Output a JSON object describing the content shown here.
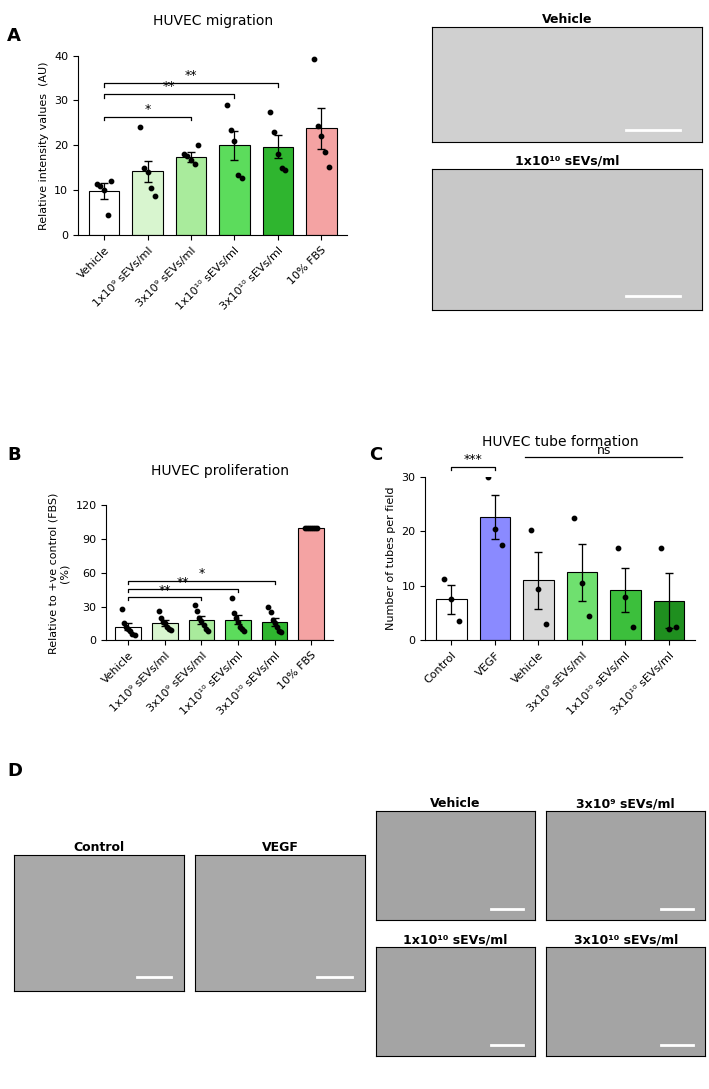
{
  "chart_data": [
    {
      "type": "bar",
      "panel": "A",
      "title": "HUVEC migration",
      "y_label": "Relative intensity values  (AU)",
      "categories": [
        "Vehicle",
        "1x10⁹ sEVs/ml",
        "3x10⁹ sEVs/ml",
        "1x10¹⁰ sEVs/ml",
        "3x10¹⁰ sEVs/ml",
        "10% FBS"
      ],
      "values": [
        9.8,
        14.2,
        17.4,
        20.0,
        19.7,
        23.8
      ],
      "errors": [
        1.8,
        2.3,
        1.2,
        3.3,
        2.5,
        4.5
      ],
      "points": [
        [
          11.5,
          11.0,
          10.0,
          4.5,
          12.0
        ],
        [
          24.0,
          15.0,
          14.0,
          10.5,
          8.8
        ],
        [
          18.0,
          17.6,
          16.8,
          15.8,
          20.0
        ],
        [
          29.0,
          23.5,
          21.0,
          13.5,
          12.7
        ],
        [
          27.5,
          23.0,
          18.0,
          15.0,
          14.5
        ],
        [
          39.3,
          24.3,
          22.0,
          18.5,
          15.2
        ]
      ],
      "colors": [
        "#ffffff",
        "#d8f5cf",
        "#a9eb9c",
        "#5cdc5c",
        "#2fb52f",
        "#f4a3a3"
      ],
      "significance": [
        {
          "from": "Vehicle",
          "to": "3x10⁹ sEVs/ml",
          "label": "*"
        },
        {
          "from": "Vehicle",
          "to": "1x10¹⁰ sEVs/ml",
          "label": "**"
        },
        {
          "from": "Vehicle",
          "to": "3x10¹⁰ sEVs/ml",
          "label": "**"
        }
      ],
      "ylim": [
        0,
        40
      ],
      "yticks": [
        0,
        10,
        20,
        30,
        40
      ]
    },
    {
      "type": "bar",
      "panel": "B",
      "title": "HUVEC proliferation",
      "y_label": "Relative to +ve control (FBS)\n(%)",
      "categories": [
        "Vehicle",
        "1x10⁹ sEVs/ml",
        "3x10⁹ sEVs/ml",
        "1x10¹⁰ sEVs/ml",
        "3x10¹⁰ sEVs/ml",
        "10% FBS"
      ],
      "values": [
        12.0,
        15.5,
        18.0,
        18.5,
        16.5,
        100.0
      ],
      "errors": [
        3.0,
        3.0,
        3.5,
        4.0,
        3.5,
        0.0
      ],
      "points": [
        [
          28.0,
          15.0,
          12.0,
          10.0,
          8.0,
          6.0,
          5.0
        ],
        [
          26.0,
          20.0,
          16.0,
          15.0,
          12.0,
          10.0,
          9.0
        ],
        [
          31.0,
          26.0,
          20.0,
          17.0,
          14.0,
          10.0,
          8.0
        ],
        [
          38.0,
          24.0,
          20.0,
          16.0,
          12.0,
          10.0,
          8.0
        ],
        [
          30.0,
          25.0,
          18.0,
          15.0,
          12.0,
          8.0,
          7.0
        ],
        [
          100.0,
          100.0,
          100.0,
          100.0,
          100.0,
          100.0,
          100.0
        ]
      ],
      "colors": [
        "#ffffff",
        "#d8f5cf",
        "#a9eb9c",
        "#5cdc5c",
        "#2fb52f",
        "#f4a3a3"
      ],
      "significance": [
        {
          "from": "Vehicle",
          "to": "3x10⁹ sEVs/ml",
          "label": "**"
        },
        {
          "from": "Vehicle",
          "to": "1x10¹⁰ sEVs/ml",
          "label": "**"
        },
        {
          "from": "Vehicle",
          "to": "3x10¹⁰ sEVs/ml",
          "label": "*"
        }
      ],
      "ylim": [
        0,
        120
      ],
      "yticks": [
        0,
        30,
        60,
        90,
        120
      ]
    },
    {
      "type": "bar",
      "panel": "C",
      "title": "HUVEC tube formation",
      "y_label": "Number of tubes per field",
      "categories": [
        "Control",
        "VEGF",
        "Vehicle",
        "3x10⁹ sEVs/ml",
        "1x10¹⁰ sEVs/ml",
        "3x10¹⁰ sEVs/ml"
      ],
      "values": [
        7.5,
        22.6,
        11.0,
        12.5,
        9.2,
        7.3
      ],
      "errors": [
        2.7,
        4.0,
        5.2,
        5.2,
        4.0,
        5.0
      ],
      "points": [
        [
          11.3,
          7.5,
          3.5
        ],
        [
          30.0,
          20.5,
          17.5
        ],
        [
          20.3,
          9.5,
          3.0
        ],
        [
          22.5,
          10.5,
          4.5
        ],
        [
          17.0,
          8.0,
          2.5
        ],
        [
          17.0,
          2.0,
          2.5
        ]
      ],
      "colors": [
        "#ffffff",
        "#8a8aff",
        "#d9d9d9",
        "#6fe06f",
        "#3cbf3c",
        "#1f8f1f"
      ],
      "significance": [
        {
          "from": "Control",
          "to": "VEGF",
          "label": "***"
        },
        {
          "from": "Vehicle",
          "to": "3x10¹⁰ sEVs/ml",
          "label": "ns"
        }
      ],
      "ylim": [
        0,
        30
      ],
      "yticks": [
        0,
        10,
        20,
        30
      ]
    }
  ],
  "images": [
    {
      "panel": "A",
      "label": "Vehicle"
    },
    {
      "panel": "A",
      "label": "1x10¹⁰ sEVs/ml"
    },
    {
      "panel": "D",
      "label": "Control"
    },
    {
      "panel": "D",
      "label": "VEGF"
    },
    {
      "panel": "D",
      "label": "Vehicle"
    },
    {
      "panel": "D",
      "label": "3x10⁹ sEVs/ml"
    },
    {
      "panel": "D",
      "label": "1x10¹⁰ sEVs/ml"
    },
    {
      "panel": "D",
      "label": "3x10¹⁰ sEVs/ml"
    }
  ]
}
